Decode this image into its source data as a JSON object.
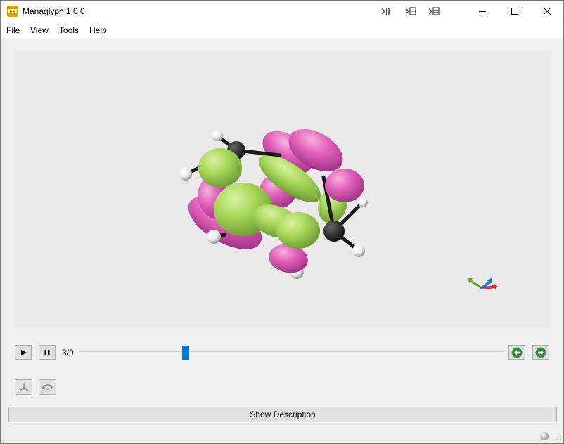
{
  "window": {
    "title": "Managlyph 1.0.0"
  },
  "menu": {
    "items": [
      "File",
      "View",
      "Tools",
      "Help"
    ]
  },
  "playback": {
    "frame_label": "3/9",
    "current_frame": 3,
    "total_frames": 9
  },
  "description": {
    "button_label": "Show Description"
  },
  "colors": {
    "accent": "#0078d7",
    "orbital_green": "#a8d85a",
    "orbital_pink": "#e060b8",
    "carbon": "#1a1a1a",
    "hydrogen": "#ffffff",
    "nav_arrow_green": "#3c8a3c"
  },
  "icons": {
    "app": "managlyph-icon",
    "toolbar": [
      "export-icon",
      "record-icon",
      "render-icon"
    ],
    "playback": [
      "play-icon",
      "pause-icon"
    ],
    "nav": [
      "previous-frame-icon",
      "next-frame-icon"
    ],
    "tools": [
      "axes-icon",
      "rotate-icon"
    ]
  }
}
